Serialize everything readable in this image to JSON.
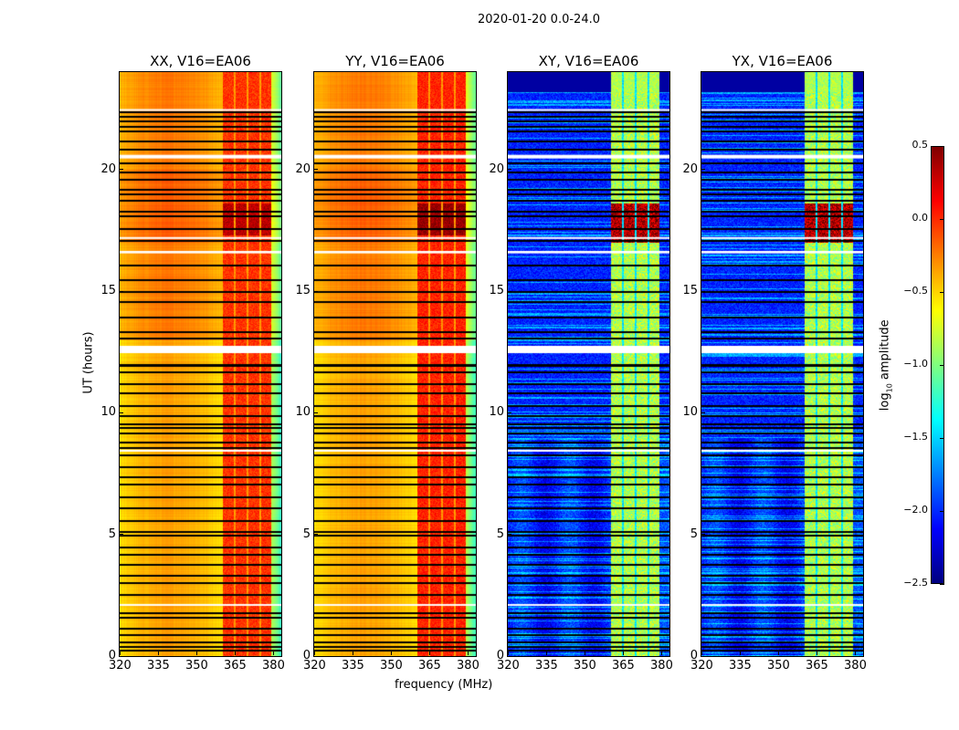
{
  "figure": {
    "suptitle": "2020-01-20 0.0-24.0",
    "xlabel": "frequency (MHz)",
    "ylabel": "UT (hours)"
  },
  "colorbar": {
    "label_prefix": "log",
    "label_sub": "10",
    "label_suffix": " amplitude",
    "range": [
      -2.5,
      0.5
    ],
    "ticks": [
      "0.5",
      "0.0",
      "−0.5",
      "−1.0",
      "−1.5",
      "−2.0",
      "−2.5"
    ],
    "tick_values": [
      0.5,
      0.0,
      -0.5,
      -1.0,
      -1.5,
      -2.0,
      -2.5
    ],
    "colormap": "jet"
  },
  "chart_data": {
    "type": "heatmap",
    "xlim": [
      320,
      383.2
    ],
    "ylim": [
      0,
      24
    ],
    "xticks": [
      320,
      335,
      350,
      365,
      380
    ],
    "xtick_labels": [
      "320",
      "335",
      "350",
      "365",
      "380"
    ],
    "yticks": [
      0,
      5,
      10,
      15,
      20
    ],
    "ytick_labels": [
      "0",
      "5",
      "10",
      "15",
      "20"
    ],
    "rfi_subbands_mhz": [
      [
        360,
        364.3
      ],
      [
        365.2,
        369.3
      ],
      [
        370.2,
        374.3
      ],
      [
        375.2,
        379
      ]
    ],
    "flagged_white_hours": [
      [
        20.45,
        20.6
      ],
      [
        12.45,
        12.75
      ],
      [
        16.55,
        16.65
      ],
      [
        17.15,
        17.22
      ],
      [
        22.42,
        22.48
      ],
      [
        8.4,
        8.48
      ],
      [
        2.08,
        2.14
      ]
    ],
    "black_line_hours": [
      22.4,
      22.2,
      22.0,
      21.8,
      21.6,
      21.2,
      20.85,
      20.3,
      19.9,
      19.6,
      19.2,
      19.0,
      18.75,
      18.3,
      18.1,
      17.6,
      17.1,
      16.1,
      15.5,
      15.0,
      14.6,
      13.95,
      13.35,
      13.1,
      12.0,
      11.7,
      11.2,
      10.85,
      10.3,
      9.9,
      9.55,
      9.4,
      9.2,
      8.8,
      8.6,
      8.3,
      7.8,
      7.4,
      7.1,
      6.55,
      6.1,
      5.6,
      5.15,
      5.0,
      4.5,
      4.2,
      3.8,
      3.35,
      3.05,
      2.55,
      1.8,
      1.6,
      1.15,
      0.9,
      0.6,
      0.4,
      0.25
    ],
    "panels": [
      {
        "title": "XX, V16=EA06",
        "kind": "parallel",
        "background_log_amp": -0.35,
        "rfi_log_amp": 0.0,
        "storm_hours": [
          17.3,
          18.6
        ],
        "storm_log_amp": 0.35
      },
      {
        "title": "YY, V16=EA06",
        "kind": "parallel",
        "background_log_amp": -0.35,
        "rfi_log_amp": 0.05,
        "storm_hours": [
          17.3,
          18.6
        ],
        "storm_log_amp": 0.4
      },
      {
        "title": "XY, V16=EA06",
        "kind": "cross",
        "background_log_amp": -2.2,
        "rfi_log_amp": -0.8,
        "storm_hours": [
          17.0,
          18.6
        ],
        "storm_log_amp": 0.45
      },
      {
        "title": "YX, V16=EA06",
        "kind": "cross",
        "background_log_amp": -2.2,
        "rfi_log_amp": -0.8,
        "storm_hours": [
          17.0,
          18.6
        ],
        "storm_log_amp": 0.45
      }
    ]
  }
}
